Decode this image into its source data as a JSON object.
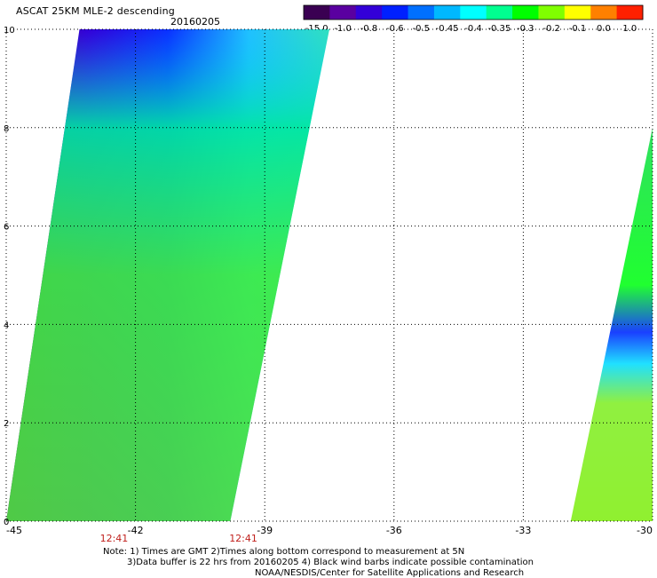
{
  "header": {
    "title": "ASCAT 25KM MLE-2 descending",
    "date": "20160205"
  },
  "colorbar": {
    "labels": [
      "-15.0",
      "-1.0",
      "-0.8",
      "-0.6",
      "-0.5",
      "-0.45",
      "-0.4",
      "-0.35",
      "-0.3",
      "-0.2",
      "-0.1",
      "0.0",
      "1.0"
    ],
    "colors": [
      "#3a0052",
      "#5a00a0",
      "#3300d8",
      "#0020ff",
      "#0070ff",
      "#00b8ff",
      "#00ffff",
      "#00ff90",
      "#00ff00",
      "#80ff00",
      "#ffff00",
      "#ff8000",
      "#ff2000"
    ]
  },
  "chart_data": {
    "type": "heatmap",
    "x_ticks": [
      "-45",
      "-42",
      "-39",
      "-36",
      "-33",
      "-30"
    ],
    "y_ticks": [
      "0",
      "2",
      "4",
      "6",
      "8",
      "10"
    ],
    "xlim": [
      -45,
      -30
    ],
    "ylim": [
      0,
      10
    ],
    "grid": true,
    "time_labels": [
      {
        "x": -42,
        "text": "12:41"
      },
      {
        "x": -39,
        "text": "12:41"
      }
    ],
    "swaths": [
      {
        "name": "west swath",
        "lat": [
          0,
          10
        ],
        "lon_west_at_bottom": -45,
        "lon_west_at_top": -43.3,
        "lon_east_at_bottom": -39.8,
        "lon_east_at_top": -37.5
      },
      {
        "name": "east swath",
        "lat": [
          0,
          8
        ],
        "lon_west_at_bottom": -31.9,
        "lon_west_at_top": -30.0,
        "lon_east_at_bottom": -30,
        "lon_east_at_top": -30
      }
    ]
  },
  "notes": {
    "line1": "Note: 1) Times are GMT 2)Times along bottom correspond to measurement at 5N",
    "line2": "3)Data buffer is 22 hrs from 20160205 4) Black wind barbs indicate possible contamination",
    "line3": "NOAA/NESDIS/Center for Satellite Applications and Research"
  }
}
